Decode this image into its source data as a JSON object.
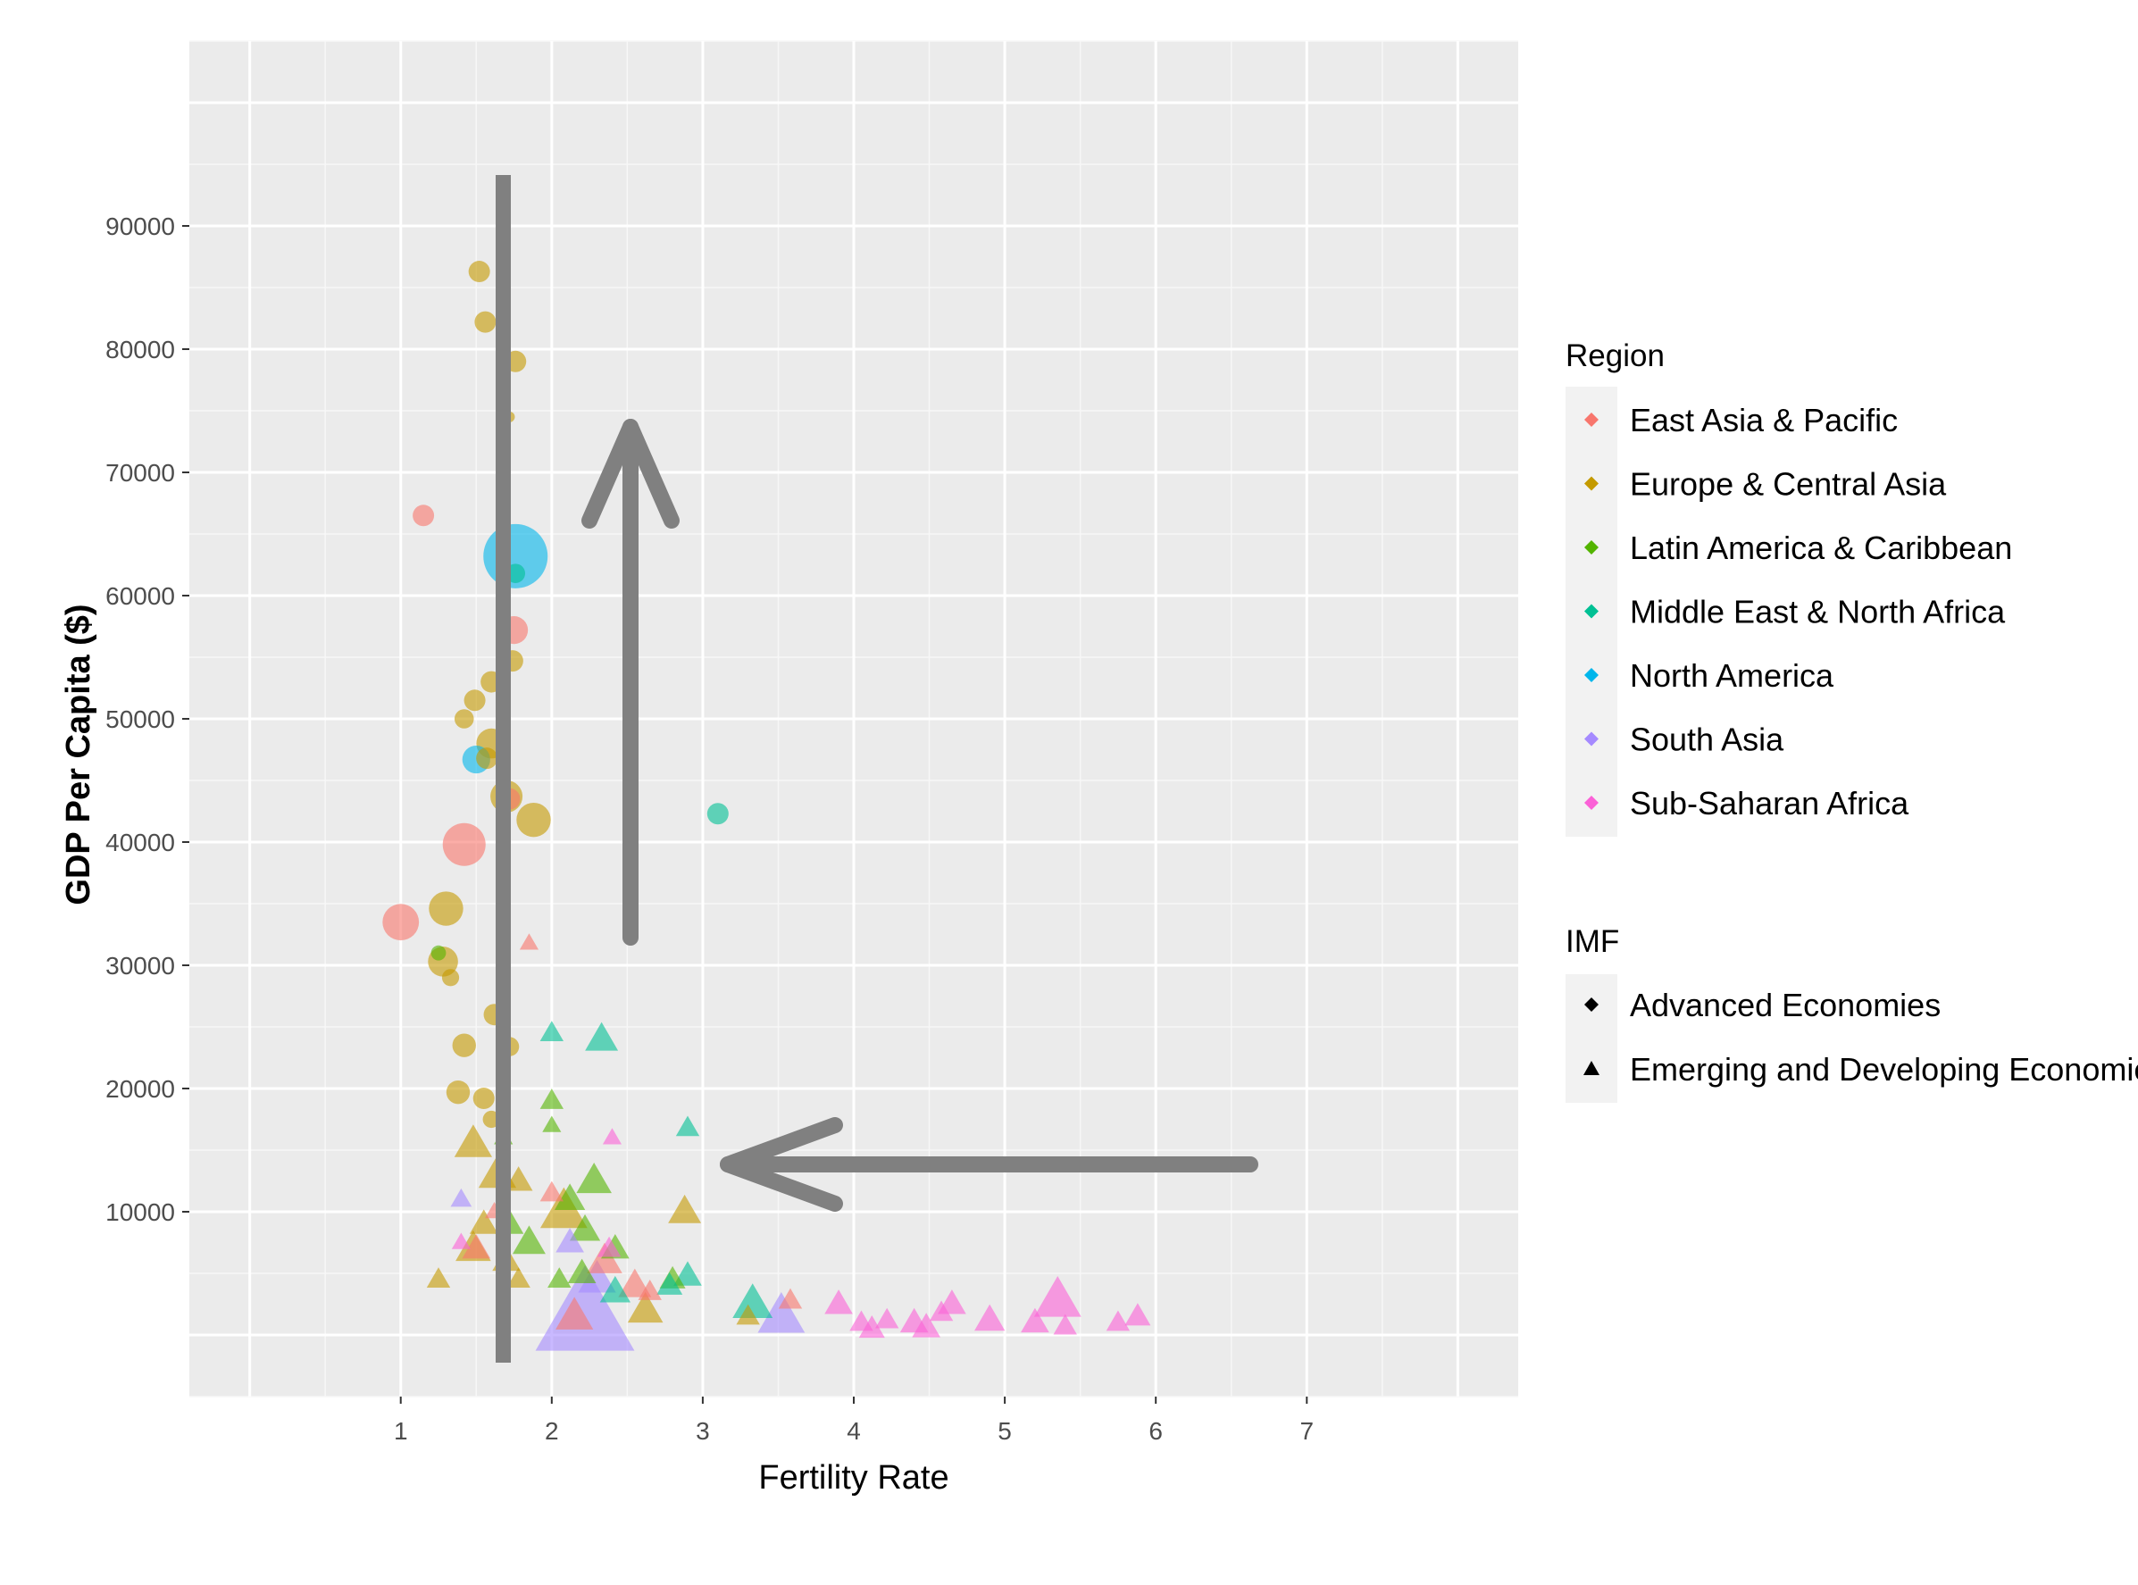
{
  "chart_data": {
    "type": "scatter",
    "xlabel": "Fertility Rate",
    "ylabel": "GDP Per Capita ($)",
    "xlim": [
      -0.4,
      8.4
    ],
    "ylim": [
      -5000,
      105000
    ],
    "x_ticks": [
      "1",
      "2",
      "3",
      "4",
      "5",
      "6",
      "7"
    ],
    "x_tick_values": [
      1,
      2,
      3,
      4,
      5,
      6,
      7
    ],
    "y_ticks": [
      "10000",
      "20000",
      "30000",
      "40000",
      "50000",
      "60000",
      "70000",
      "80000",
      "90000"
    ],
    "y_tick_values": [
      10000,
      20000,
      30000,
      40000,
      50000,
      60000,
      70000,
      80000,
      90000
    ],
    "grid": true,
    "legend_position": "right",
    "legends": {
      "region": {
        "title": "Region",
        "items": [
          {
            "label": "East Asia & Pacific",
            "color": "#F8766D"
          },
          {
            "label": "Europe & Central Asia",
            "color": "#C49A00"
          },
          {
            "label": "Latin America & Caribbean",
            "color": "#53B400"
          },
          {
            "label": "Middle East & North Africa",
            "color": "#00C094"
          },
          {
            "label": "North America",
            "color": "#00B6EB"
          },
          {
            "label": "South Asia",
            "color": "#A58AFF"
          },
          {
            "label": "Sub-Saharan Africa",
            "color": "#FB61D7"
          }
        ]
      },
      "imf": {
        "title": "IMF",
        "items": [
          {
            "label": "Advanced Economies",
            "shape": "circle"
          },
          {
            "label": "Emerging and Developing Economies",
            "shape": "triangle"
          }
        ]
      }
    },
    "series": [
      {
        "name": "East Asia & Pacific",
        "color": "#F8766D",
        "points": [
          {
            "x": 1.15,
            "y": 66500,
            "s": 1,
            "shape": "circle"
          },
          {
            "x": 1.75,
            "y": 57200,
            "s": 1.3,
            "shape": "circle"
          },
          {
            "x": 1.42,
            "y": 39800,
            "s": 2,
            "shape": "circle"
          },
          {
            "x": 1.0,
            "y": 33500,
            "s": 1.7,
            "shape": "circle"
          },
          {
            "x": 1.72,
            "y": 43500,
            "s": 1,
            "shape": "circle"
          },
          {
            "x": 1.85,
            "y": 31800,
            "s": 0.8,
            "shape": "triangle"
          },
          {
            "x": 2.0,
            "y": 11500,
            "s": 1,
            "shape": "triangle"
          },
          {
            "x": 1.5,
            "y": 7000,
            "s": 1.2,
            "shape": "triangle"
          },
          {
            "x": 1.62,
            "y": 10000,
            "s": 0.8,
            "shape": "triangle"
          },
          {
            "x": 2.35,
            "y": 6000,
            "s": 1.5,
            "shape": "triangle"
          },
          {
            "x": 2.55,
            "y": 4000,
            "s": 1.4,
            "shape": "triangle"
          },
          {
            "x": 2.15,
            "y": 1500,
            "s": 1.6,
            "shape": "triangle"
          },
          {
            "x": 3.58,
            "y": 2800,
            "s": 1,
            "shape": "triangle"
          },
          {
            "x": 2.65,
            "y": 3500,
            "s": 1,
            "shape": "triangle"
          }
        ]
      },
      {
        "name": "Europe & Central Asia",
        "color": "#C49A00",
        "points": [
          {
            "x": 1.52,
            "y": 86300,
            "s": 1,
            "shape": "circle"
          },
          {
            "x": 1.56,
            "y": 82200,
            "s": 1,
            "shape": "circle"
          },
          {
            "x": 1.76,
            "y": 79000,
            "s": 1,
            "shape": "circle"
          },
          {
            "x": 1.72,
            "y": 74500,
            "s": 0.5,
            "shape": "circle"
          },
          {
            "x": 1.74,
            "y": 54700,
            "s": 1,
            "shape": "circle"
          },
          {
            "x": 1.6,
            "y": 53000,
            "s": 1,
            "shape": "circle"
          },
          {
            "x": 1.49,
            "y": 51500,
            "s": 1,
            "shape": "circle"
          },
          {
            "x": 1.42,
            "y": 50000,
            "s": 0.9,
            "shape": "circle"
          },
          {
            "x": 1.6,
            "y": 48000,
            "s": 1.4,
            "shape": "circle"
          },
          {
            "x": 1.57,
            "y": 46800,
            "s": 1,
            "shape": "circle"
          },
          {
            "x": 1.7,
            "y": 43700,
            "s": 1.5,
            "shape": "circle"
          },
          {
            "x": 1.88,
            "y": 41800,
            "s": 1.6,
            "shape": "circle"
          },
          {
            "x": 1.3,
            "y": 34600,
            "s": 1.6,
            "shape": "circle"
          },
          {
            "x": 1.28,
            "y": 30300,
            "s": 1.4,
            "shape": "circle"
          },
          {
            "x": 1.33,
            "y": 29000,
            "s": 0.8,
            "shape": "circle"
          },
          {
            "x": 1.62,
            "y": 26000,
            "s": 1,
            "shape": "circle"
          },
          {
            "x": 1.42,
            "y": 23500,
            "s": 1.1,
            "shape": "circle"
          },
          {
            "x": 1.72,
            "y": 23400,
            "s": 0.9,
            "shape": "circle"
          },
          {
            "x": 1.38,
            "y": 19700,
            "s": 1.1,
            "shape": "circle"
          },
          {
            "x": 1.55,
            "y": 19200,
            "s": 1,
            "shape": "circle"
          },
          {
            "x": 1.6,
            "y": 17500,
            "s": 0.8,
            "shape": "circle"
          },
          {
            "x": 1.48,
            "y": 15500,
            "s": 1.6,
            "shape": "triangle"
          },
          {
            "x": 1.64,
            "y": 13000,
            "s": 1.6,
            "shape": "triangle"
          },
          {
            "x": 1.78,
            "y": 12500,
            "s": 1.2,
            "shape": "triangle"
          },
          {
            "x": 2.08,
            "y": 10000,
            "s": 2,
            "shape": "triangle"
          },
          {
            "x": 2.88,
            "y": 10000,
            "s": 1.4,
            "shape": "triangle"
          },
          {
            "x": 1.55,
            "y": 9000,
            "s": 1.2,
            "shape": "triangle"
          },
          {
            "x": 1.48,
            "y": 7000,
            "s": 1.5,
            "shape": "triangle"
          },
          {
            "x": 1.7,
            "y": 6000,
            "s": 1.2,
            "shape": "triangle"
          },
          {
            "x": 1.25,
            "y": 4500,
            "s": 1,
            "shape": "triangle"
          },
          {
            "x": 1.78,
            "y": 4500,
            "s": 1,
            "shape": "triangle"
          },
          {
            "x": 2.62,
            "y": 2000,
            "s": 1.5,
            "shape": "triangle"
          },
          {
            "x": 3.3,
            "y": 1500,
            "s": 1,
            "shape": "triangle"
          }
        ]
      },
      {
        "name": "Latin America & Caribbean",
        "color": "#53B400",
        "points": [
          {
            "x": 1.25,
            "y": 31000,
            "s": 0.7,
            "shape": "circle"
          },
          {
            "x": 2.0,
            "y": 19000,
            "s": 1,
            "shape": "triangle"
          },
          {
            "x": 2.0,
            "y": 17000,
            "s": 0.8,
            "shape": "triangle"
          },
          {
            "x": 2.28,
            "y": 12500,
            "s": 1.5,
            "shape": "triangle"
          },
          {
            "x": 2.12,
            "y": 11000,
            "s": 1.3,
            "shape": "triangle"
          },
          {
            "x": 1.72,
            "y": 9000,
            "s": 1.2,
            "shape": "triangle"
          },
          {
            "x": 1.85,
            "y": 7500,
            "s": 1.4,
            "shape": "triangle"
          },
          {
            "x": 2.22,
            "y": 8500,
            "s": 1.3,
            "shape": "triangle"
          },
          {
            "x": 2.42,
            "y": 7000,
            "s": 1.2,
            "shape": "triangle"
          },
          {
            "x": 2.2,
            "y": 5000,
            "s": 1.2,
            "shape": "triangle"
          },
          {
            "x": 2.05,
            "y": 4500,
            "s": 1,
            "shape": "triangle"
          },
          {
            "x": 2.8,
            "y": 4500,
            "s": 1.1,
            "shape": "triangle"
          },
          {
            "x": 1.68,
            "y": 16000,
            "s": 0.8,
            "shape": "triangle"
          }
        ]
      },
      {
        "name": "Middle East & North Africa",
        "color": "#00C094",
        "points": [
          {
            "x": 3.1,
            "y": 42300,
            "s": 1,
            "shape": "circle"
          },
          {
            "x": 1.76,
            "y": 61800,
            "s": 0.9,
            "shape": "circle"
          },
          {
            "x": 2.0,
            "y": 24500,
            "s": 1,
            "shape": "triangle"
          },
          {
            "x": 2.33,
            "y": 24000,
            "s": 1.4,
            "shape": "triangle"
          },
          {
            "x": 2.9,
            "y": 16800,
            "s": 1,
            "shape": "triangle"
          },
          {
            "x": 2.9,
            "y": 4800,
            "s": 1.2,
            "shape": "triangle"
          },
          {
            "x": 2.78,
            "y": 4000,
            "s": 1.1,
            "shape": "triangle"
          },
          {
            "x": 3.33,
            "y": 2500,
            "s": 1.7,
            "shape": "triangle"
          },
          {
            "x": 2.42,
            "y": 3500,
            "s": 1.3,
            "shape": "triangle"
          }
        ]
      },
      {
        "name": "North America",
        "color": "#00B6EB",
        "points": [
          {
            "x": 1.76,
            "y": 63200,
            "s": 3,
            "shape": "circle"
          },
          {
            "x": 1.5,
            "y": 46700,
            "s": 1.3,
            "shape": "circle"
          }
        ]
      },
      {
        "name": "South Asia",
        "color": "#A58AFF",
        "points": [
          {
            "x": 2.22,
            "y": 1500,
            "s": 4.2,
            "shape": "triangle"
          },
          {
            "x": 2.3,
            "y": 4500,
            "s": 1.6,
            "shape": "triangle"
          },
          {
            "x": 2.12,
            "y": 7500,
            "s": 1.2,
            "shape": "triangle"
          },
          {
            "x": 3.52,
            "y": 1500,
            "s": 2,
            "shape": "triangle"
          },
          {
            "x": 1.4,
            "y": 11000,
            "s": 0.9,
            "shape": "triangle"
          }
        ]
      },
      {
        "name": "Sub-Saharan Africa",
        "color": "#FB61D7",
        "points": [
          {
            "x": 2.4,
            "y": 16000,
            "s": 0.8,
            "shape": "triangle"
          },
          {
            "x": 3.9,
            "y": 2500,
            "s": 1.2,
            "shape": "triangle"
          },
          {
            "x": 4.05,
            "y": 1000,
            "s": 1,
            "shape": "triangle"
          },
          {
            "x": 4.12,
            "y": 500,
            "s": 1.1,
            "shape": "triangle"
          },
          {
            "x": 4.22,
            "y": 1200,
            "s": 1,
            "shape": "triangle"
          },
          {
            "x": 4.4,
            "y": 1000,
            "s": 1.2,
            "shape": "triangle"
          },
          {
            "x": 4.48,
            "y": 600,
            "s": 1.2,
            "shape": "triangle"
          },
          {
            "x": 4.58,
            "y": 1800,
            "s": 1,
            "shape": "triangle"
          },
          {
            "x": 4.65,
            "y": 2500,
            "s": 1.2,
            "shape": "triangle"
          },
          {
            "x": 4.9,
            "y": 1200,
            "s": 1.3,
            "shape": "triangle"
          },
          {
            "x": 5.2,
            "y": 1000,
            "s": 1.2,
            "shape": "triangle"
          },
          {
            "x": 5.35,
            "y": 2800,
            "s": 2,
            "shape": "triangle"
          },
          {
            "x": 5.4,
            "y": 700,
            "s": 1,
            "shape": "triangle"
          },
          {
            "x": 5.75,
            "y": 1000,
            "s": 1,
            "shape": "triangle"
          },
          {
            "x": 5.88,
            "y": 1500,
            "s": 1.1,
            "shape": "triangle"
          },
          {
            "x": 2.38,
            "y": 7000,
            "s": 1,
            "shape": "triangle"
          },
          {
            "x": 1.4,
            "y": 7500,
            "s": 0.8,
            "shape": "triangle"
          }
        ]
      }
    ]
  }
}
